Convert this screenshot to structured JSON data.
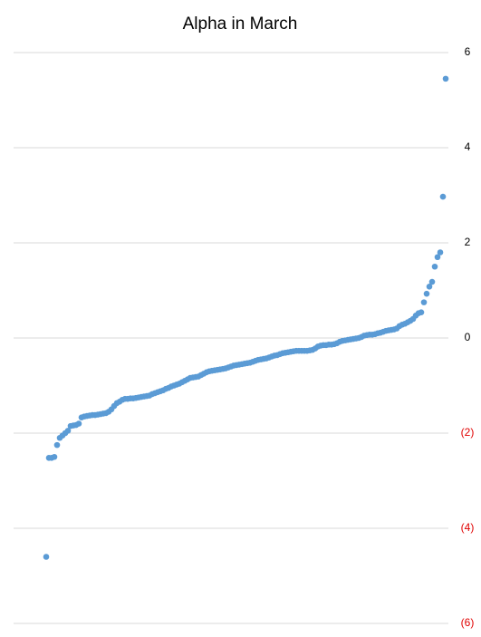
{
  "chart_data": {
    "type": "scatter",
    "title": "Alpha in March",
    "color": "#5b9bd5",
    "values": [
      -4.6,
      -2.52,
      -2.52,
      -2.5,
      -2.25,
      -2.1,
      -2.05,
      -2.0,
      -1.95,
      -1.85,
      -1.84,
      -1.83,
      -1.8,
      -1.67,
      -1.65,
      -1.64,
      -1.63,
      -1.62,
      -1.62,
      -1.61,
      -1.6,
      -1.59,
      -1.58,
      -1.55,
      -1.5,
      -1.43,
      -1.37,
      -1.34,
      -1.3,
      -1.28,
      -1.28,
      -1.27,
      -1.27,
      -1.26,
      -1.25,
      -1.24,
      -1.23,
      -1.22,
      -1.21,
      -1.18,
      -1.16,
      -1.14,
      -1.12,
      -1.1,
      -1.07,
      -1.05,
      -1.02,
      -1.0,
      -0.98,
      -0.96,
      -0.93,
      -0.9,
      -0.87,
      -0.84,
      -0.83,
      -0.82,
      -0.81,
      -0.78,
      -0.75,
      -0.72,
      -0.7,
      -0.69,
      -0.68,
      -0.67,
      -0.66,
      -0.65,
      -0.64,
      -0.62,
      -0.6,
      -0.58,
      -0.57,
      -0.56,
      -0.55,
      -0.54,
      -0.53,
      -0.52,
      -0.5,
      -0.48,
      -0.46,
      -0.45,
      -0.44,
      -0.43,
      -0.41,
      -0.39,
      -0.37,
      -0.36,
      -0.34,
      -0.32,
      -0.31,
      -0.3,
      -0.29,
      -0.28,
      -0.27,
      -0.27,
      -0.27,
      -0.27,
      -0.27,
      -0.26,
      -0.25,
      -0.22,
      -0.18,
      -0.16,
      -0.15,
      -0.15,
      -0.14,
      -0.14,
      -0.13,
      -0.11,
      -0.08,
      -0.06,
      -0.05,
      -0.04,
      -0.03,
      -0.02,
      -0.01,
      0,
      0.02,
      0.05,
      0.06,
      0.07,
      0.07,
      0.08,
      0.1,
      0.11,
      0.13,
      0.15,
      0.16,
      0.17,
      0.18,
      0.2,
      0.25,
      0.28,
      0.3,
      0.33,
      0.36,
      0.4,
      0.47,
      0.52,
      0.54,
      0.75,
      0.93,
      1.08,
      1.18,
      1.5,
      1.7,
      1.8,
      2.97,
      5.45
    ],
    "ylim": [
      -6,
      6
    ],
    "yticks": [
      6,
      4,
      2,
      0,
      {
        "value": -2,
        "label": "(2)"
      },
      {
        "value": -4,
        "label": "(4)"
      },
      {
        "value": -6,
        "label": "(6)"
      }
    ],
    "negative_tick_color": "#e00000",
    "grid": true
  }
}
